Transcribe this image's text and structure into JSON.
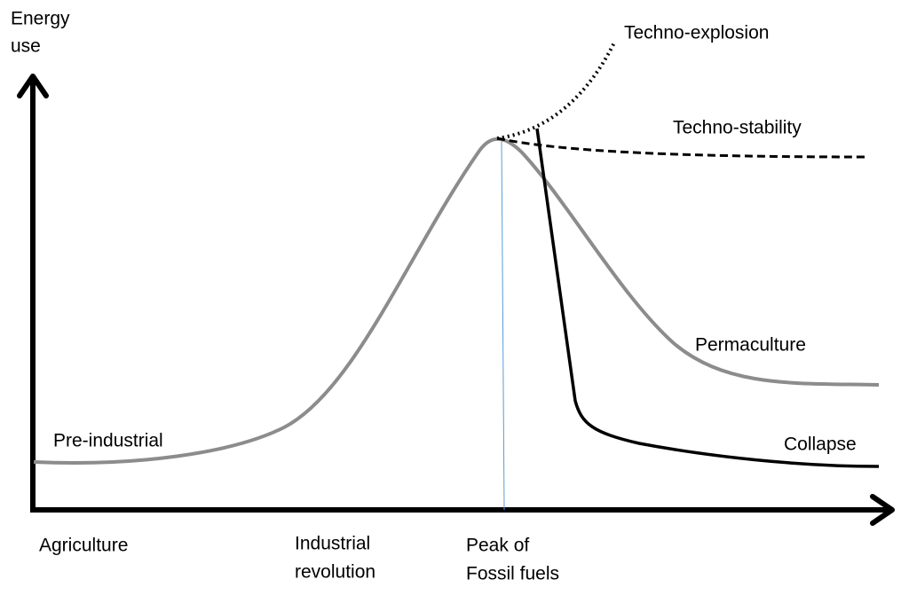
{
  "y_axis_label": [
    "Energy",
    "use"
  ],
  "x_labels": [
    [
      "Agriculture"
    ],
    [
      "Industrial",
      "revolution"
    ],
    [
      "Peak of",
      "Fossil fuels"
    ]
  ],
  "curve_labels": {
    "pre_industrial": "Pre-industrial",
    "techno_explosion": "Techno-explosion",
    "techno_stability": "Techno-stability",
    "permaculture": "Permaculture",
    "collapse": "Collapse"
  }
}
